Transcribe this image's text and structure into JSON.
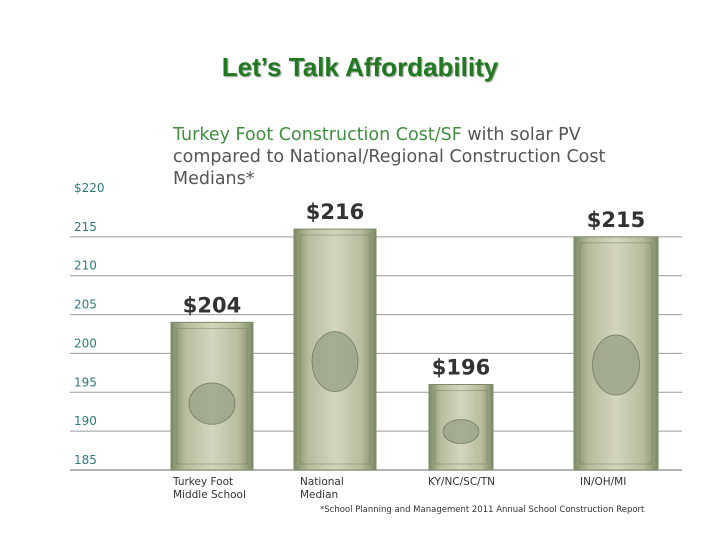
{
  "page": {
    "title": "Let’s Talk Affordability"
  },
  "chart_data": {
    "type": "bar",
    "title_highlight": "Turkey Foot Construction Cost/SF",
    "title_rest": " with solar PV compared to National/Regional Construction Cost Medians*",
    "categories": [
      [
        "Turkey Foot",
        "Middle School"
      ],
      [
        "National",
        "Median"
      ],
      [
        "KY/NC/SC/TN"
      ],
      [
        "IN/OH/MI"
      ]
    ],
    "values": [
      204,
      216,
      196,
      215
    ],
    "data_labels": [
      "$204",
      "$216",
      "$196",
      "$215"
    ],
    "ylim": [
      185,
      220
    ],
    "yticks": [
      185,
      190,
      195,
      200,
      205,
      210,
      215,
      220
    ],
    "ytick_labels": [
      "185",
      "190",
      "195",
      "200",
      "205",
      "210",
      "215",
      "$220"
    ],
    "grid": true,
    "footnote": "*School Planning and Management 2011 Annual School Construction Report",
    "colors": {
      "bill": "#b8bd9e",
      "bill_dark": "#7d8a66",
      "grid": "#9a9a9a",
      "tick_label": "#2f7a7a",
      "data_label": "#333333",
      "title": "#555555",
      "title_highlight": "#3f8f3f"
    }
  }
}
